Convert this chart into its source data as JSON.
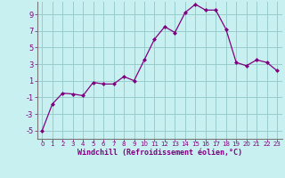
{
  "x": [
    0,
    1,
    2,
    3,
    4,
    5,
    6,
    7,
    8,
    9,
    10,
    11,
    12,
    13,
    14,
    15,
    16,
    17,
    18,
    19,
    20,
    21,
    22,
    23
  ],
  "y": [
    -5,
    -1.8,
    -0.5,
    -0.6,
    -0.8,
    0.8,
    0.6,
    0.6,
    1.5,
    1.0,
    3.5,
    6.0,
    7.5,
    6.8,
    9.2,
    10.2,
    9.5,
    9.5,
    7.2,
    3.2,
    2.8,
    3.5,
    3.2,
    2.2
  ],
  "line_color": "#800080",
  "marker": "D",
  "marker_size": 2.0,
  "bg_color": "#c8f0f0",
  "grid_color": "#99cccc",
  "xlabel": "Windchill (Refroidissement éolien,°C)",
  "ytick_labels": [
    "9",
    "7",
    "5",
    "3",
    "1",
    "-1",
    "-3",
    "-5"
  ],
  "ytick_vals": [
    9,
    7,
    5,
    3,
    1,
    -1,
    -3,
    -5
  ],
  "xlim": [
    -0.5,
    23.5
  ],
  "ylim": [
    -6.0,
    10.5
  ]
}
